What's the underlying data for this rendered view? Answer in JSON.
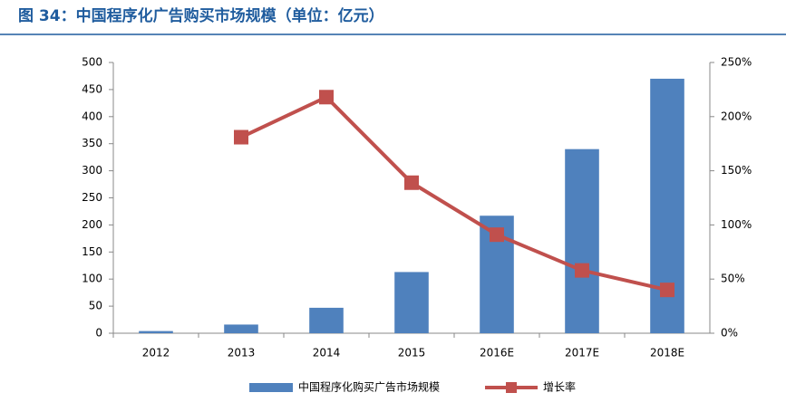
{
  "chart_data": {
    "type": "bar_line",
    "title": "图 34：中国程序化广告购买市场规模（单位：亿元）",
    "categories": [
      "2012",
      "2013",
      "2014",
      "2015",
      "2016E",
      "2017E",
      "2018E"
    ],
    "series": [
      {
        "name": "中国程序化购买广告市场规模",
        "color": "#4f81bd",
        "type": "bar",
        "values": [
          4,
          16,
          47,
          113,
          217,
          340,
          470
        ]
      },
      {
        "name": "增长率",
        "color": "#c0504d",
        "type": "line",
        "axis": "y2",
        "values": [
          null,
          181,
          218,
          139,
          91,
          58,
          40
        ]
      }
    ],
    "ylim": [
      0,
      500
    ],
    "yticks": [
      0,
      50,
      100,
      150,
      200,
      250,
      300,
      350,
      400,
      450,
      500
    ],
    "y2lim": [
      0,
      250
    ],
    "y2ticks": [
      {
        "value": 0,
        "label": "0%"
      },
      {
        "value": 50,
        "label": "50%"
      },
      {
        "value": 100,
        "label": "100%"
      },
      {
        "value": 150,
        "label": "150%"
      },
      {
        "value": 200,
        "label": "200%"
      },
      {
        "value": 250,
        "label": "250%"
      }
    ],
    "grid": false,
    "legend": "bottom"
  }
}
